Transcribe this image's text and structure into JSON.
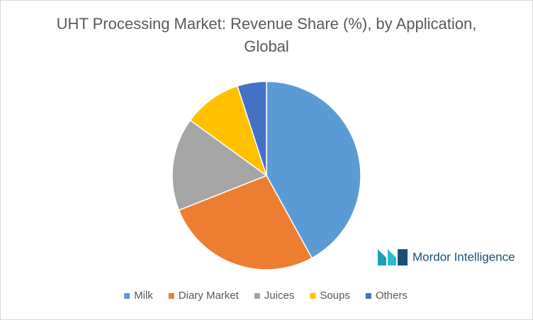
{
  "chart_data": {
    "type": "pie",
    "title": "UHT Processing Market: Revenue Share (%), by Application, Global",
    "categories": [
      "Milk",
      "Diary Market",
      "Juices",
      "Soups",
      "Others"
    ],
    "values": [
      42,
      27,
      16,
      10,
      5
    ],
    "colors": [
      "#5b9bd5",
      "#ed7d31",
      "#a5a5a5",
      "#ffc000",
      "#4472c4"
    ],
    "legend": "bottom",
    "watermark": "Mordor Intelligence"
  }
}
